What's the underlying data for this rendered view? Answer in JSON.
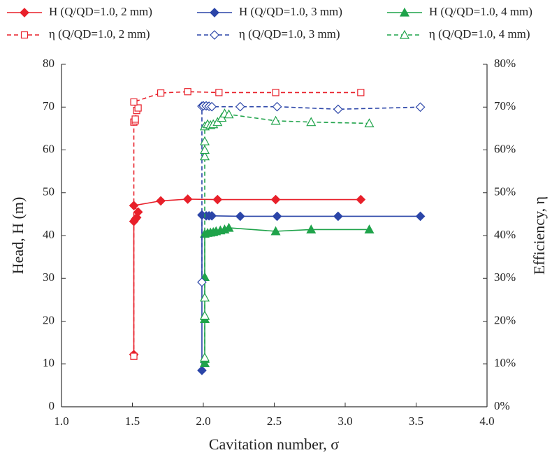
{
  "chart_data": {
    "type": "scatter",
    "xlabel": "Cavitation number, σ",
    "ylabel": "Head, H (m)",
    "y2label": "Efficiency, η",
    "xlim": [
      1.0,
      4.0
    ],
    "xticks": [
      {
        "value": 1.0,
        "label": "1.0"
      },
      1.5,
      {
        "value": 2.0,
        "label": "2.0"
      },
      2.5,
      {
        "value": 3.0,
        "label": "3.0"
      },
      3.5,
      {
        "value": 4.0,
        "label": "4.0"
      }
    ],
    "ylim": [
      0,
      80
    ],
    "yticks": [
      0,
      10,
      20,
      30,
      40,
      50,
      60,
      70,
      80
    ],
    "y2lim": [
      0,
      80
    ],
    "y2ticks": [
      {
        "value": 0,
        "label": "0%"
      },
      {
        "value": 10,
        "label": "10%"
      },
      {
        "value": 20,
        "label": "20%"
      },
      {
        "value": 30,
        "label": "30%"
      },
      {
        "value": 40,
        "label": "40%"
      },
      {
        "value": 50,
        "label": "50%"
      },
      {
        "value": 60,
        "label": "60%"
      },
      {
        "value": 70,
        "label": "70%"
      },
      {
        "value": 80,
        "label": "80%"
      }
    ],
    "series": [
      {
        "name": "H (Q/QD=1.0, 2 mm)",
        "color": "#e8202a",
        "marker": "diamond",
        "filled": true,
        "dashed": false,
        "x": [
          1.51,
          1.51,
          1.52,
          1.53,
          1.54,
          1.51,
          1.7,
          1.89,
          2.1,
          2.51,
          3.11
        ],
        "values": [
          12.2,
          43.3,
          43.8,
          44.2,
          45.5,
          47.0,
          48.1,
          48.5,
          48.4,
          48.4,
          48.4
        ]
      },
      {
        "name": "H (Q/QD=1.0, 3 mm)",
        "color": "#2b45a8",
        "marker": "diamond",
        "filled": true,
        "dashed": false,
        "x": [
          1.99,
          1.99,
          2.02,
          2.04,
          2.06,
          2.26,
          2.52,
          2.95,
          3.53
        ],
        "values": [
          8.5,
          44.8,
          44.6,
          44.6,
          44.6,
          44.5,
          44.5,
          44.5,
          44.5
        ]
      },
      {
        "name": "H (Q/QD=1.0, 4 mm)",
        "color": "#1fa34a",
        "marker": "triangle",
        "filled": true,
        "dashed": false,
        "x": [
          2.01,
          2.01,
          2.01,
          2.01,
          2.01,
          2.01,
          2.03,
          2.05,
          2.07,
          2.09,
          2.12,
          2.15,
          2.18,
          2.51,
          2.76,
          3.17
        ],
        "values": [
          10.2,
          11.2,
          20.5,
          21.2,
          30.3,
          40.4,
          40.6,
          40.7,
          40.8,
          41.0,
          41.2,
          41.4,
          41.8,
          41.0,
          41.4,
          41.4
        ]
      },
      {
        "name": "η (Q/QD=1.0, 2 mm)",
        "color": "#e8202a",
        "marker": "square",
        "filled": false,
        "dashed": true,
        "axis": "y2",
        "x": [
          1.51,
          1.51,
          1.52,
          1.52,
          1.53,
          1.54,
          1.51,
          1.7,
          1.89,
          2.11,
          2.51,
          3.11
        ],
        "values": [
          11.8,
          66.5,
          66.8,
          67.2,
          69.2,
          69.8,
          71.2,
          73.3,
          73.6,
          73.4,
          73.4,
          73.4
        ]
      },
      {
        "name": "η (Q/QD=1.0, 3 mm)",
        "color": "#2b45a8",
        "marker": "diamond",
        "filled": false,
        "dashed": true,
        "axis": "y2",
        "x": [
          1.99,
          1.99,
          2.0,
          2.02,
          2.04,
          2.06,
          2.26,
          2.52,
          2.95,
          3.53
        ],
        "values": [
          29.1,
          70.2,
          70.3,
          70.3,
          70.2,
          70.1,
          70.1,
          70.1,
          69.5,
          70.0
        ]
      },
      {
        "name": "η (Q/QD=1.0, 4 mm)",
        "color": "#1fa34a",
        "marker": "triangle",
        "filled": false,
        "dashed": true,
        "axis": "y2",
        "x": [
          2.01,
          2.01,
          2.01,
          2.01,
          2.01,
          2.01,
          2.01,
          2.03,
          2.05,
          2.07,
          2.1,
          2.13,
          2.15,
          2.18,
          2.51,
          2.76,
          3.17
        ],
        "values": [
          11.5,
          21.3,
          25.5,
          58.5,
          60.0,
          62.0,
          65.5,
          66.0,
          65.8,
          66.0,
          66.5,
          67.5,
          68.5,
          68.3,
          66.8,
          66.5,
          66.2
        ]
      }
    ]
  }
}
